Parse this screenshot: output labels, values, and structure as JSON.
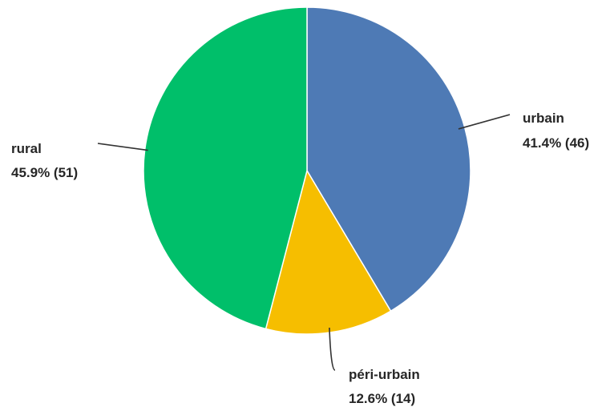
{
  "chart_data": {
    "type": "pie",
    "title": "",
    "start_angle_deg": 0,
    "direction": "clockwise",
    "legend": "none",
    "slices": [
      {
        "label": "urbain",
        "percent_label": "41.4% (46)",
        "value": 46,
        "percent": 41.4,
        "color": "#4E7AB5"
      },
      {
        "label": "péri-urbain",
        "percent_label": "12.6% (14)",
        "value": 14,
        "percent": 12.6,
        "color": "#F6BE00"
      },
      {
        "label": "rural",
        "percent_label": "45.9% (51)",
        "value": 51,
        "percent": 45.9,
        "color": "#00BF6A"
      }
    ]
  }
}
